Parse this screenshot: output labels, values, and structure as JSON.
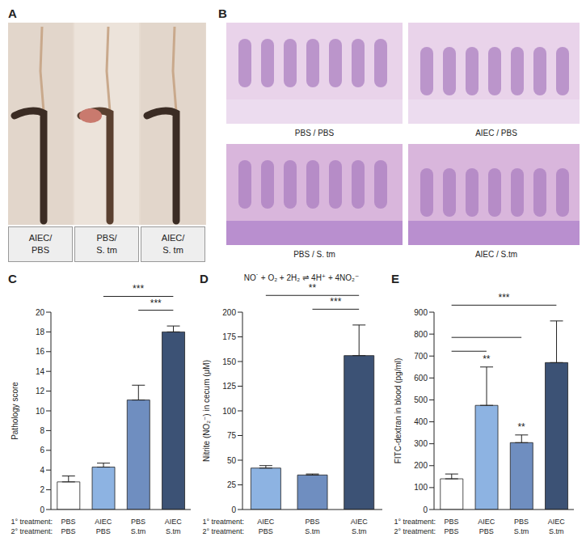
{
  "panels": [
    {
      "letter": "A",
      "captions": [
        [
          "AIEC/",
          "PBS"
        ],
        [
          "PBS/",
          "S. tm"
        ],
        [
          "AIEC/",
          "S. tm"
        ]
      ]
    },
    {
      "letter": "B",
      "captions": [
        "PBS / PBS",
        "AIEC / PBS",
        "PBS / S. tm",
        "AIEC / S.tm"
      ]
    }
  ],
  "chart_data": [
    {
      "type": "bar",
      "title": "C",
      "y_label": "Pathology score",
      "row_labels": [
        "1° treatment:",
        "2° treatment:"
      ],
      "categories": [
        [
          "PBS",
          "PBS"
        ],
        [
          "AIEC",
          "PBS"
        ],
        [
          "PBS",
          "S.tm"
        ],
        [
          "AIEC",
          "S.tm"
        ]
      ],
      "values": [
        2.8,
        4.3,
        11.1,
        18.0
      ],
      "errors": [
        0.6,
        0.4,
        1.5,
        0.6
      ],
      "colors": [
        "#ffffff",
        "#8db3e2",
        "#6f8ec0",
        "#3c5275"
      ],
      "ylim": [
        0,
        20
      ],
      "yticks": [
        0,
        2,
        4,
        6,
        8,
        10,
        12,
        14,
        16,
        18,
        20
      ],
      "significance": [
        {
          "pair": [
            2,
            3
          ],
          "label": "***"
        },
        {
          "pair": [
            1,
            3
          ],
          "label": "***"
        }
      ]
    },
    {
      "type": "bar",
      "title": "D",
      "annotation": "NO˙ + O₂ + 2H₂ ⇌ 4H⁺ + 4NO₂⁻",
      "y_label": "Nitrite (NO₂⁻) in cecum (μM)",
      "row_labels": [
        "1° treatment:",
        "2° treatment:"
      ],
      "categories": [
        [
          "AIEC",
          "PBS"
        ],
        [
          "PBS",
          "S.tm"
        ],
        [
          "AIEC",
          "S.tm"
        ]
      ],
      "values": [
        42,
        35,
        156
      ],
      "errors": [
        2.5,
        1,
        31
      ],
      "colors": [
        "#8db3e2",
        "#6f8ec0",
        "#3c5275"
      ],
      "ylim": [
        0,
        200
      ],
      "yticks": [
        0,
        25,
        50,
        75,
        100,
        125,
        150,
        175,
        200
      ],
      "significance": [
        {
          "pair": [
            1,
            2
          ],
          "label": "***"
        },
        {
          "pair": [
            0,
            2
          ],
          "label": "**"
        }
      ]
    },
    {
      "type": "bar",
      "title": "E",
      "y_label": "FITC-dextran in blood (pg/ml)",
      "row_labels": [
        "1° treatment:",
        "2° treatment:"
      ],
      "categories": [
        [
          "PBS",
          "PBS"
        ],
        [
          "AIEC",
          "PBS"
        ],
        [
          "PBS",
          "S.tm"
        ],
        [
          "AIEC",
          "S.tm"
        ]
      ],
      "values": [
        140,
        475,
        305,
        670
      ],
      "errors": [
        22,
        175,
        35,
        190
      ],
      "bar_labels": [
        null,
        "**",
        "**",
        null
      ],
      "colors": [
        "#ffffff",
        "#8db3e2",
        "#6f8ec0",
        "#3c5275"
      ],
      "ylim": [
        0,
        900
      ],
      "yticks": [
        0,
        100,
        200,
        300,
        400,
        500,
        600,
        700,
        800,
        900
      ],
      "significance": [
        {
          "pair": [
            0,
            1
          ]
        },
        {
          "pair": [
            0,
            2
          ]
        },
        {
          "pair": [
            0,
            3
          ],
          "label": "***"
        }
      ]
    }
  ]
}
